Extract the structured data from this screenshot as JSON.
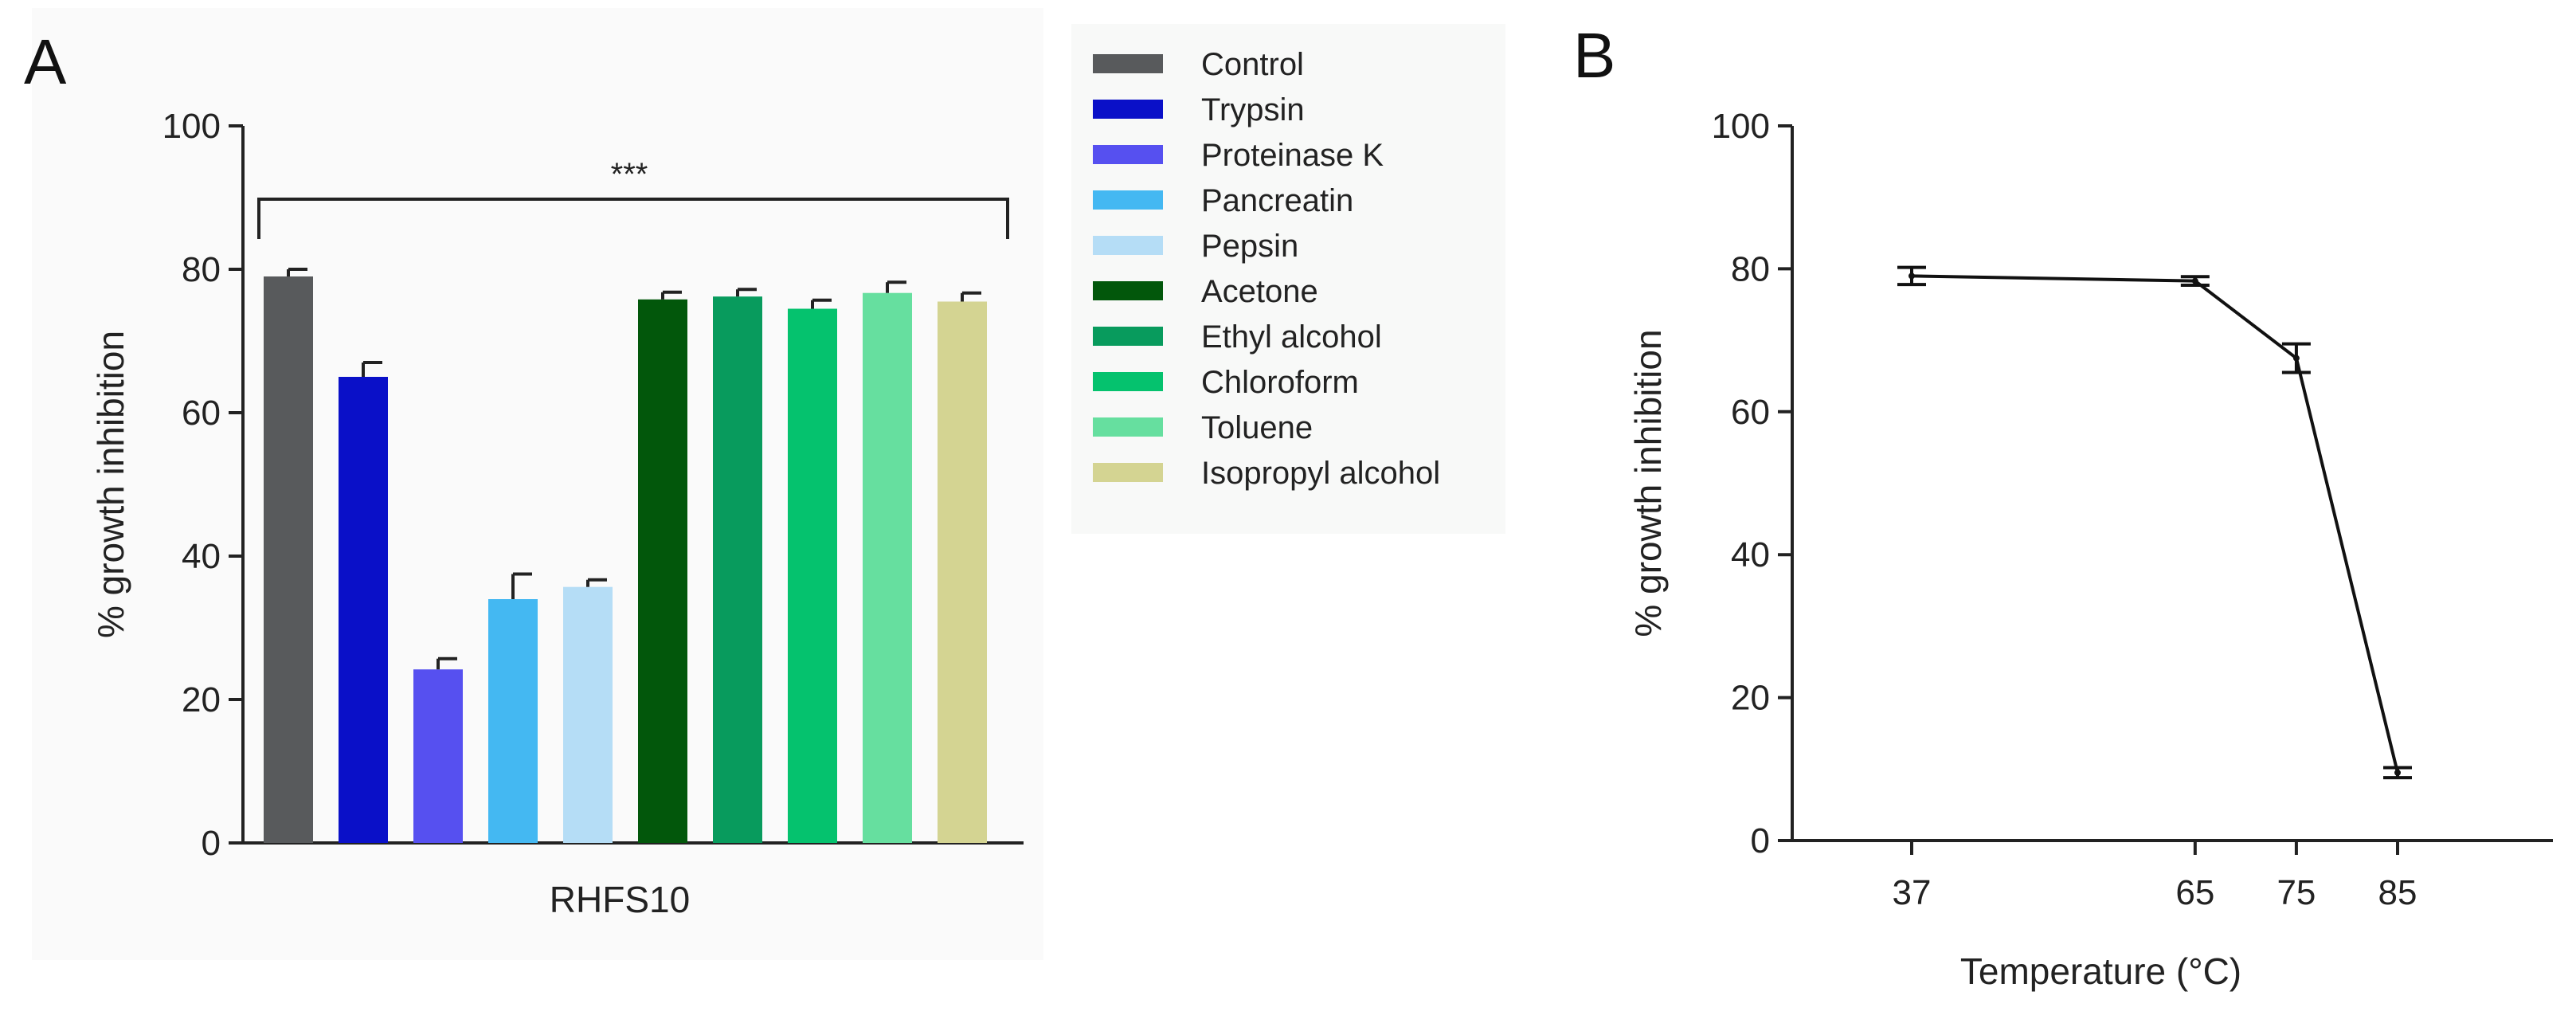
{
  "panels": {
    "a_label": "A",
    "b_label": "B"
  },
  "chart_data": [
    {
      "type": "bar",
      "panel": "A",
      "title": "",
      "xlabel": "RHFS10",
      "ylabel": "% growth inhibition",
      "ylim": [
        0,
        100
      ],
      "yticks": [
        "0",
        "20",
        "40",
        "60",
        "80",
        "100"
      ],
      "grid": false,
      "legend_position": "right",
      "annotation": "***",
      "categories": [
        "Control",
        "Trypsin",
        "Proteinase K",
        "Pancreatin",
        "Pepsin",
        "Acetone",
        "Ethyl alcohol",
        "Chloroform",
        "Toluene",
        "Isopropyl alcohol"
      ],
      "values": [
        79,
        65,
        24.2,
        34,
        35.7,
        75.8,
        76.2,
        74.5,
        76.7,
        75.5
      ],
      "errors": [
        1,
        2,
        1.5,
        3.5,
        1,
        1,
        1,
        1.2,
        1.5,
        1.2
      ],
      "colors": [
        "#585a5c",
        "#0a10c8",
        "#5650f0",
        "#44b8f2",
        "#b5ddf6",
        "#02570b",
        "#089b5d",
        "#05c26e",
        "#66df9f",
        "#d4d492"
      ]
    },
    {
      "type": "line",
      "panel": "B",
      "title": "",
      "xlabel": "Temperature (°C)",
      "ylabel": "% growth inhibition",
      "ylim": [
        0,
        100
      ],
      "yticks": [
        "0",
        "20",
        "40",
        "60",
        "80",
        "100"
      ],
      "xticks": [
        "37",
        "65",
        "75",
        "85"
      ],
      "grid": false,
      "x": [
        37,
        65,
        75,
        85
      ],
      "y": [
        79,
        78.3,
        67.5,
        9.5
      ],
      "errors": [
        1.2,
        0.6,
        2,
        0.7
      ],
      "color": "#111111"
    }
  ]
}
